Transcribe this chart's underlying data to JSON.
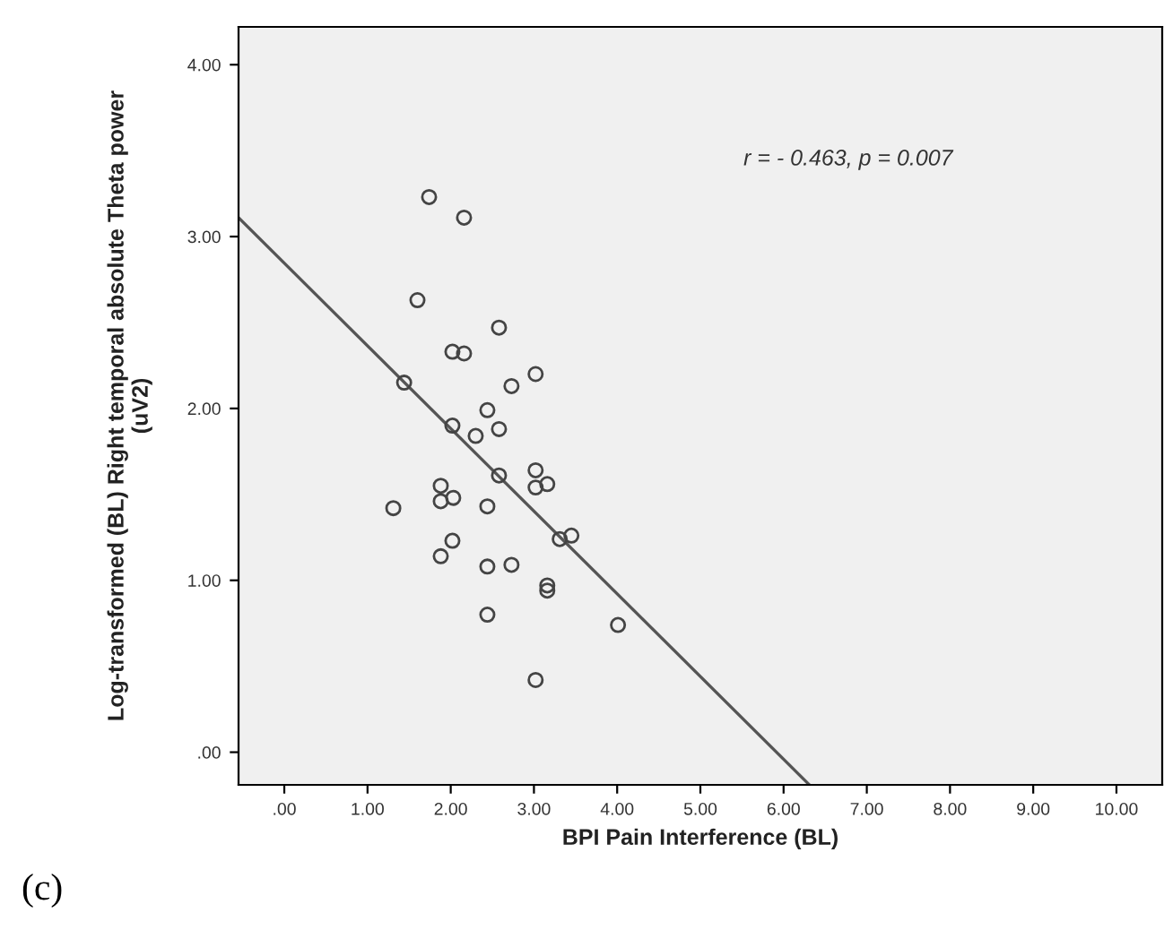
{
  "chart_data": {
    "type": "scatter",
    "xlabel": "BPI Pain Interference (BL)",
    "ylabel": "Log-transformed (BL) Right temporal absolute Theta power\n(uV2)",
    "xlim": [
      -0.55,
      10.55
    ],
    "ylim": [
      -0.19,
      4.22
    ],
    "xticks": [
      {
        "value": 0,
        "label": ".00"
      },
      {
        "value": 1,
        "label": "1.00"
      },
      {
        "value": 2,
        "label": "2.00"
      },
      {
        "value": 3,
        "label": "3.00"
      },
      {
        "value": 4,
        "label": "4.00"
      },
      {
        "value": 5,
        "label": "5.00"
      },
      {
        "value": 6,
        "label": "6.00"
      },
      {
        "value": 7,
        "label": "7.00"
      },
      {
        "value": 8,
        "label": "8.00"
      },
      {
        "value": 9,
        "label": "9.00"
      },
      {
        "value": 10,
        "label": "10.00"
      }
    ],
    "yticks": [
      {
        "value": 0,
        "label": ".00"
      },
      {
        "value": 1,
        "label": "1.00"
      },
      {
        "value": 2,
        "label": "2.00"
      },
      {
        "value": 3,
        "label": "3.00"
      },
      {
        "value": 4,
        "label": "4.00"
      }
    ],
    "grid": false,
    "series": [
      {
        "marker": "circle",
        "color": "#444444",
        "x": [
          1.74,
          2.16,
          1.6,
          2.58,
          2.02,
          2.16,
          3.02,
          1.44,
          2.73,
          2.44,
          2.02,
          2.58,
          2.3,
          2.58,
          3.02,
          3.02,
          3.16,
          1.88,
          1.88,
          2.03,
          1.31,
          2.44,
          3.31,
          3.45,
          2.02,
          1.88,
          2.44,
          2.73,
          3.16,
          3.16,
          2.44,
          4.01,
          3.02
        ],
        "values": [
          3.23,
          3.11,
          2.63,
          2.47,
          2.33,
          2.32,
          2.2,
          2.15,
          2.13,
          1.99,
          1.9,
          1.88,
          1.84,
          1.61,
          1.64,
          1.54,
          1.56,
          1.55,
          1.46,
          1.48,
          1.42,
          1.43,
          1.24,
          1.26,
          1.23,
          1.14,
          1.08,
          1.09,
          0.97,
          0.94,
          0.8,
          0.74,
          0.42
        ]
      },
      {
        "type": "line",
        "color": "#555555",
        "x": [
          -0.55,
          6.31
        ],
        "values": [
          3.11,
          -0.19
        ]
      }
    ],
    "annotations": [
      "r = - 0.463, p = 0.007",
      "(c)"
    ]
  }
}
